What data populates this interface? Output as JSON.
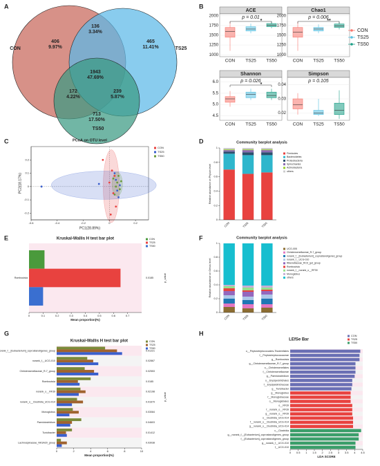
{
  "chart_data": [
    {
      "type": "venn",
      "label": "A",
      "sets": [
        "CON",
        "TS25",
        "TS50"
      ],
      "colors": [
        "#c8665a",
        "#5bb8e8",
        "#3a9a82"
      ],
      "values": [
        406,
        136,
        465,
        1943,
        172,
        239,
        713
      ],
      "percent_labels": [
        "9.97%",
        "3.34%",
        "11.41%",
        "47.69%",
        "4.22%",
        "5.87%",
        "17.50%"
      ]
    },
    {
      "type": "box",
      "label": "B",
      "groups": [
        "CON",
        "TS25",
        "TS50"
      ],
      "colors": [
        "#f8766d",
        "#56bfe0",
        "#1b9e86"
      ],
      "panels": [
        {
          "title": "ACE",
          "p_label": "p = 0.01",
          "signif": "*",
          "ylim": [
            950,
            2050
          ],
          "yticks": [
            1000,
            1250,
            1500,
            1750,
            2000
          ],
          "boxes": [
            {
              "low": 1100,
              "q1": 1450,
              "median": 1600,
              "q3": 1700,
              "high": 1850
            },
            {
              "low": 1550,
              "q1": 1610,
              "median": 1660,
              "q3": 1720,
              "high": 1800
            },
            {
              "low": 1680,
              "q1": 1720,
              "median": 1760,
              "q3": 1800,
              "high": 1860
            }
          ]
        },
        {
          "title": "Chao1",
          "p_label": "p = 0.006",
          "signif": "**",
          "ylim": [
            950,
            2050
          ],
          "yticks": [
            1000,
            1250,
            1500,
            1750,
            2000
          ],
          "boxes": [
            {
              "low": 1100,
              "q1": 1450,
              "median": 1580,
              "q3": 1700,
              "high": 1850
            },
            {
              "low": 1550,
              "q1": 1610,
              "median": 1660,
              "q3": 1700,
              "high": 1780
            },
            {
              "low": 1650,
              "q1": 1700,
              "median": 1740,
              "q3": 1790,
              "high": 1850
            }
          ]
        },
        {
          "title": "Shannon",
          "p_label": "p = 0.026",
          "signif": "*",
          "ylim": [
            4.3,
            6.2
          ],
          "yticks": [
            4.5,
            {
              "value": 5,
              "label": "5.0"
            },
            5.5,
            {
              "value": 6,
              "label": "6.0"
            }
          ],
          "boxes": [
            {
              "low": 4.9,
              "q1": 5.1,
              "median": 5.25,
              "q3": 5.35,
              "high": 5.6
            },
            {
              "low": 5.2,
              "q1": 5.3,
              "median": 5.45,
              "q3": 5.55,
              "high": 5.7
            },
            {
              "low": 5.2,
              "q1": 5.3,
              "median": 5.4,
              "q3": 5.55,
              "high": 5.7
            }
          ]
        },
        {
          "title": "Simpson",
          "p_label": "p = 0.105",
          "ylim": [
            0.015,
            0.045
          ],
          "yticks": [
            0.02,
            0.03,
            0.04
          ],
          "boxes": [
            {
              "low": 0.019,
              "q1": 0.023,
              "median": 0.026,
              "q3": 0.03,
              "high": 0.034
            },
            {
              "low": 0.018,
              "q1": 0.019,
              "median": 0.02,
              "q3": 0.022,
              "high": 0.03
            },
            {
              "low": 0.016,
              "q1": 0.019,
              "median": 0.022,
              "q3": 0.027,
              "high": 0.036
            }
          ]
        }
      ]
    },
    {
      "type": "scatter",
      "label": "C",
      "title": "PCoA on OTU level",
      "xlabel": "PC1(28.89%)",
      "ylabel": "PC2(18.17%)",
      "xlim": [
        -0.6,
        0.3
      ],
      "xticks": [
        -0.6,
        -0.4,
        -0.2,
        0,
        0.2
      ],
      "ylim": [
        -0.25,
        0.3
      ],
      "yticks": [
        -0.2,
        -0.1,
        0,
        0.1,
        0.2
      ],
      "series": [
        {
          "name": "CON",
          "color": "#e8423f",
          "x": [
            -0.05,
            0.02,
            0.04,
            0.03,
            0.05,
            0.0,
            0.01
          ],
          "y": [
            0.2,
            0.12,
            0.08,
            -0.05,
            -0.15,
            0.03,
            -0.21
          ]
        },
        {
          "name": "TS25",
          "color": "#3a5fcd",
          "x": [
            -0.52,
            -0.08,
            0.05,
            0.08,
            0.06,
            0.04,
            0.07
          ],
          "y": [
            0.0,
            0.02,
            0.05,
            0.01,
            -0.03,
            0.1,
            -0.08
          ]
        },
        {
          "name": "TS50",
          "color": "#6a9a3a",
          "x": [
            0.03,
            0.06,
            0.08,
            0.05,
            0.07,
            0.09,
            0.04
          ],
          "y": [
            0.06,
            0.03,
            -0.02,
            0.0,
            0.08,
            0.04,
            -0.06
          ]
        }
      ]
    },
    {
      "type": "stack",
      "label": "D",
      "title": "Community barplot analysis",
      "ylabel": "Relative abundance on Phylum level",
      "categories": [
        "CON",
        "TS25",
        "TS50"
      ],
      "ylim": [
        0,
        1
      ],
      "yticks": [
        0,
        0.2,
        0.4,
        0.6,
        0.8,
        1
      ],
      "series": [
        {
          "name": "Firmicutes",
          "color": "#e8423f",
          "values": [
            0.7,
            0.64,
            0.66
          ]
        },
        {
          "name": "Bacteroidetes",
          "color": "#2fb6cc",
          "values": [
            0.22,
            0.26,
            0.24
          ]
        },
        {
          "name": "Proteobacteria",
          "color": "#2d4f6e",
          "values": [
            0.03,
            0.04,
            0.04
          ]
        },
        {
          "name": "Spirochaetes",
          "color": "#8c6bb1",
          "values": [
            0.02,
            0.03,
            0.03
          ]
        },
        {
          "name": "Actinobacteria",
          "color": "#9acd32",
          "values": [
            0.01,
            0.01,
            0.01
          ]
        },
        {
          "name": "others",
          "color": "#cccccc",
          "values": [
            0.02,
            0.02,
            0.02
          ]
        }
      ]
    },
    {
      "type": "hbar",
      "label": "E",
      "title": "Kruskal-Wallis H test bar plot",
      "xlabel": "Mean proportion(%)",
      "p_axis_label": "p_value",
      "categories": [
        "Romboutsia"
      ],
      "p_values": [
        0.0185
      ],
      "xlim": [
        0,
        0.8
      ],
      "xticks": [
        0,
        0.1,
        0.2,
        0.3,
        0.4,
        0.5,
        0.6,
        0.7
      ],
      "series": [
        {
          "name": "CON",
          "color": "#4a9a3c",
          "values": [
            0.11
          ]
        },
        {
          "name": "TS25",
          "color": "#e8423f",
          "values": [
            0.65
          ]
        },
        {
          "name": "TS50",
          "color": "#3a6fd0",
          "values": [
            0.1
          ]
        }
      ]
    },
    {
      "type": "stack",
      "label": "F",
      "title": "Community barplot analysis",
      "ylabel": "Relative abundance on Genus level",
      "categories": [
        "CON",
        "TS25",
        "TS50"
      ],
      "ylim": [
        0,
        1
      ],
      "yticks": [
        0,
        0.2,
        0.4,
        0.6,
        0.8,
        1
      ],
      "series": [
        {
          "name": "UCG-005",
          "color": "#8c6d31",
          "values": [
            0.08,
            0.06,
            0.07
          ]
        },
        {
          "name": "Christensenellaceae_R-7_group",
          "color": "#e377c2",
          "values": [
            0.05,
            0.06,
            0.05
          ]
        },
        {
          "name": "norank_f__[Eubacterium]_coprostanoligenes_group",
          "color": "#1f77b4",
          "values": [
            0.07,
            0.06,
            0.08
          ]
        },
        {
          "name": "norank_f__UCG-010",
          "color": "#aec7e8",
          "values": [
            0.05,
            0.05,
            0.06
          ]
        },
        {
          "name": "Rikenellaceae_RC9_gut_group",
          "color": "#9467bd",
          "values": [
            0.06,
            0.07,
            0.05
          ]
        },
        {
          "name": "Romboutsia",
          "color": "#e8423f",
          "values": [
            0.04,
            0.02,
            0.02
          ]
        },
        {
          "name": "norank_f__norank_o__RF39",
          "color": "#98df8a",
          "values": [
            0.03,
            0.04,
            0.03
          ]
        },
        {
          "name": "Monoglobus",
          "color": "#c5b0d5",
          "values": [
            0.02,
            0.03,
            0.03
          ]
        },
        {
          "name": "others",
          "color": "#17becf",
          "values": [
            0.6,
            0.61,
            0.61
          ]
        }
      ]
    },
    {
      "type": "hbar",
      "label": "G",
      "title": "Kruskal-Wallis H test bar plot",
      "xlabel": "Mean proportion(%)",
      "p_axis_label": "p_value",
      "categories": [
        "norank_f__[Eubacterium]_coprostanoligenes_group",
        "norank_f__UCG-010",
        "Christensenellaceae_R-7_group",
        "Romboutsia",
        "norank_o__RF39",
        "norank_o__Clostridia_UCG-014",
        "Monoglobus",
        "Paeniclostridium",
        "Turicibacter",
        "Lachnospiraceae_NK3A20_group"
      ],
      "p_values": [
        0.01221,
        0.02867,
        0.02553,
        0.0185,
        0.02198,
        0.01679,
        0.03084,
        0.04603,
        0.01412,
        0.03038
      ],
      "xlim": [
        0,
        10
      ],
      "xticks": [
        0,
        2,
        4,
        6,
        8,
        10
      ],
      "series": [
        {
          "name": "CON",
          "color": "#7b8b3a",
          "values": [
            5.7,
            3.6,
            3.3,
            4.0,
            2.8,
            2.4,
            1.9,
            2.9,
            1.8,
            0.5
          ]
        },
        {
          "name": "TS25",
          "color": "#a0632e",
          "values": [
            7.1,
            4.3,
            4.4,
            2.5,
            3.4,
            3.1,
            2.6,
            1.8,
            1.1,
            1.2
          ]
        },
        {
          "name": "TS50",
          "color": "#3a5fcd",
          "values": [
            7.7,
            4.9,
            4.9,
            2.7,
            2.6,
            1.8,
            1.5,
            1.6,
            1.2,
            0.6
          ]
        }
      ]
    },
    {
      "type": "lefse",
      "label": "H",
      "title": "LEfSe Bar",
      "xlabel": "LDA SCORE",
      "xlim": [
        0,
        4.5
      ],
      "xticks": [
        0,
        0.5,
        1,
        1.5,
        2,
        2.5,
        3,
        3.5,
        4,
        4.5
      ],
      "series": [
        {
          "name": "CON",
          "color": "#6a6fb4",
          "categories": [
            "o__Peptostreptococcales-Tissierellales",
            "f__Peptostreptococcaceae",
            "g__Romboutsia",
            "g__Christensenellaceae_R-7_group",
            "o__Christensenellales",
            "f__Christensenellaceae",
            "g__Paeniclostridium",
            "o__Erysipelotrichales",
            "f__Erysipelotrichaceae",
            "g__Turicibacter"
          ],
          "values": [
            4.35,
            4.3,
            4.3,
            4.05,
            4.05,
            4.05,
            4.0,
            3.85,
            3.85,
            3.8
          ]
        },
        {
          "name": "TS25",
          "color": "#e8423f",
          "categories": [
            "g__Monoglobus",
            "f__Monoglobaceae",
            "o__Monoglobales",
            "o__RF39",
            "f__norank_o__RF39",
            "g__norank_o__RF39",
            "o__Clostridia_UCG-014",
            "f__norank_o__Clostridia_UCG-014",
            "g__norank_o__Clostridia_UCG-014"
          ],
          "values": [
            3.75,
            3.75,
            3.75,
            3.85,
            3.85,
            3.85,
            3.9,
            3.9,
            3.9
          ]
        },
        {
          "name": "TS50",
          "color": "#3a9e6a",
          "categories": [
            "c__Clostridia",
            "g__norank_f__[Eubacterium]_coprostanoligenes_group",
            "f__[Eubacterium]_coprostanoligenes_group",
            "g__norank_f__UCG-010",
            "f__UCG-010"
          ],
          "values": [
            4.4,
            4.25,
            4.25,
            4.05,
            4.05
          ]
        }
      ]
    }
  ]
}
